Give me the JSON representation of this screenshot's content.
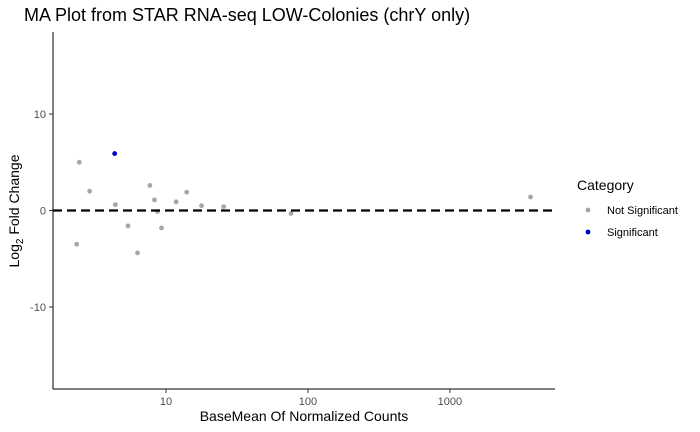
{
  "chart_data": {
    "type": "scatter",
    "title": "MA Plot from STAR RNA-seq LOW-Colonies (chrY only)",
    "xlabel": "BaseMean Of Normalized Counts",
    "ylabel_main": "Log",
    "ylabel_sub": "2",
    "ylabel_rest": " Fold Change",
    "xscale": "log10",
    "xlim": [
      1.6,
      5500
    ],
    "ylim": [
      -18.5,
      18.5
    ],
    "x_ticks": [
      {
        "value": 10,
        "label": "10"
      },
      {
        "value": 100,
        "label": "100"
      },
      {
        "value": 1000,
        "label": "1000"
      }
    ],
    "y_ticks": [
      {
        "value": 10,
        "label": "10"
      },
      {
        "value": 0,
        "label": "0"
      },
      {
        "value": -10,
        "label": "-10"
      }
    ],
    "reference_line": {
      "y": 0,
      "style": "dashed",
      "color": "#000000"
    },
    "grid": false,
    "legend": {
      "title": "Category",
      "position": "right",
      "entries": [
        {
          "label": "Not Significant",
          "color": "#a6a6a6"
        },
        {
          "label": "Significant",
          "color": "#0000cc"
        }
      ]
    },
    "series": [
      {
        "name": "Not Significant",
        "color": "#a6a6a6",
        "points": [
          {
            "x": 2.45,
            "y": 5.0
          },
          {
            "x": 2.9,
            "y": 2.0
          },
          {
            "x": 2.35,
            "y": -3.5
          },
          {
            "x": 4.4,
            "y": 0.6
          },
          {
            "x": 5.4,
            "y": -1.6
          },
          {
            "x": 6.3,
            "y": -4.4
          },
          {
            "x": 7.7,
            "y": 2.6
          },
          {
            "x": 8.3,
            "y": 1.1
          },
          {
            "x": 8.7,
            "y": -0.1
          },
          {
            "x": 9.3,
            "y": -1.8
          },
          {
            "x": 11.8,
            "y": 0.9
          },
          {
            "x": 14.0,
            "y": 1.9
          },
          {
            "x": 17.8,
            "y": 0.5
          },
          {
            "x": 25.5,
            "y": 0.4
          },
          {
            "x": 76.0,
            "y": -0.3
          },
          {
            "x": 3700.0,
            "y": 1.4
          }
        ]
      },
      {
        "name": "Significant",
        "color": "#0000cc",
        "points": [
          {
            "x": 4.35,
            "y": 5.9
          }
        ]
      }
    ]
  }
}
